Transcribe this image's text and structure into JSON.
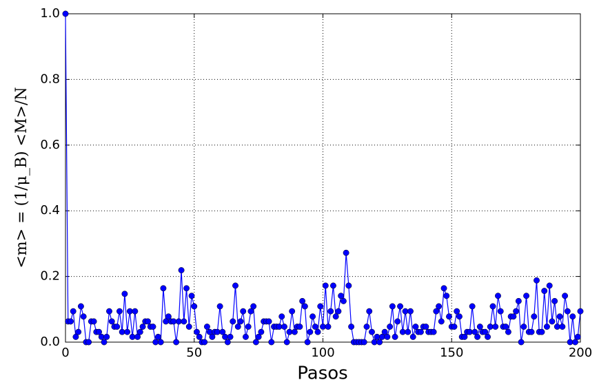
{
  "chart_data": {
    "type": "line",
    "x_label": "Pasos",
    "y_label": "<m> = (1/μ_B) <M>/N",
    "x": [
      0,
      1,
      2,
      3,
      4,
      5,
      6,
      7,
      8,
      9,
      10,
      11,
      12,
      13,
      14,
      15,
      16,
      17,
      18,
      19,
      20,
      21,
      22,
      23,
      24,
      25,
      26,
      27,
      28,
      29,
      30,
      31,
      32,
      33,
      34,
      35,
      36,
      37,
      38,
      39,
      40,
      41,
      42,
      43,
      44,
      45,
      46,
      47,
      48,
      49,
      50,
      51,
      52,
      53,
      54,
      55,
      56,
      57,
      58,
      59,
      60,
      61,
      62,
      63,
      64,
      65,
      66,
      67,
      68,
      69,
      70,
      71,
      72,
      73,
      74,
      75,
      76,
      77,
      78,
      79,
      80,
      81,
      82,
      83,
      84,
      85,
      86,
      87,
      88,
      89,
      90,
      91,
      92,
      93,
      94,
      95,
      96,
      97,
      98,
      99,
      100,
      101,
      102,
      103,
      104,
      105,
      106,
      107,
      108,
      109,
      110,
      111,
      112,
      113,
      114,
      115,
      116,
      117,
      118,
      119,
      120,
      121,
      122,
      123,
      124,
      125,
      126,
      127,
      128,
      129,
      130,
      131,
      132,
      133,
      134,
      135,
      136,
      137,
      138,
      139,
      140,
      141,
      142,
      143,
      144,
      145,
      146,
      147,
      148,
      149,
      150,
      151,
      152,
      153,
      154,
      155,
      156,
      157,
      158,
      159,
      160,
      161,
      162,
      163,
      164,
      165,
      166,
      167,
      168,
      169,
      170,
      171,
      172,
      173,
      174,
      175,
      176,
      177,
      178,
      179,
      180,
      181,
      182,
      183,
      184,
      185,
      186,
      187,
      188,
      189,
      190,
      191,
      192,
      193,
      194,
      195,
      196,
      197,
      198,
      199,
      200
    ],
    "series": [
      {
        "name": "m",
        "color": "#0000ff",
        "values": [
          1.0,
          0.063,
          0.063,
          0.094,
          0.016,
          0.031,
          0.109,
          0.078,
          0.0,
          0.0,
          0.063,
          0.063,
          0.031,
          0.031,
          0.016,
          0.0,
          0.016,
          0.094,
          0.063,
          0.047,
          0.047,
          0.094,
          0.031,
          0.147,
          0.031,
          0.094,
          0.016,
          0.094,
          0.016,
          0.031,
          0.047,
          0.063,
          0.063,
          0.047,
          0.047,
          0.0,
          0.016,
          0.0,
          0.164,
          0.063,
          0.078,
          0.063,
          0.063,
          0.0,
          0.063,
          0.219,
          0.063,
          0.164,
          0.047,
          0.141,
          0.109,
          0.031,
          0.016,
          0.0,
          0.0,
          0.047,
          0.031,
          0.016,
          0.031,
          0.031,
          0.109,
          0.031,
          0.016,
          0.0,
          0.016,
          0.063,
          0.172,
          0.047,
          0.063,
          0.094,
          0.016,
          0.047,
          0.094,
          0.109,
          0.0,
          0.016,
          0.031,
          0.063,
          0.063,
          0.063,
          0.0,
          0.047,
          0.047,
          0.047,
          0.078,
          0.047,
          0.0,
          0.031,
          0.094,
          0.031,
          0.047,
          0.047,
          0.125,
          0.109,
          0.0,
          0.031,
          0.078,
          0.047,
          0.031,
          0.109,
          0.047,
          0.172,
          0.047,
          0.094,
          0.172,
          0.078,
          0.094,
          0.141,
          0.125,
          0.272,
          0.172,
          0.047,
          0.0,
          0.0,
          0.0,
          0.0,
          0.0,
          0.047,
          0.094,
          0.031,
          0.0,
          0.016,
          0.0,
          0.016,
          0.031,
          0.016,
          0.047,
          0.109,
          0.016,
          0.063,
          0.109,
          0.031,
          0.094,
          0.031,
          0.094,
          0.016,
          0.047,
          0.031,
          0.031,
          0.047,
          0.047,
          0.031,
          0.031,
          0.031,
          0.094,
          0.109,
          0.063,
          0.164,
          0.141,
          0.078,
          0.047,
          0.047,
          0.094,
          0.078,
          0.016,
          0.016,
          0.031,
          0.031,
          0.109,
          0.031,
          0.016,
          0.047,
          0.031,
          0.031,
          0.016,
          0.047,
          0.109,
          0.047,
          0.141,
          0.094,
          0.047,
          0.047,
          0.031,
          0.078,
          0.078,
          0.094,
          0.125,
          0.0,
          0.047,
          0.141,
          0.031,
          0.031,
          0.078,
          0.188,
          0.031,
          0.031,
          0.156,
          0.047,
          0.172,
          0.063,
          0.125,
          0.047,
          0.078,
          0.047,
          0.141,
          0.094,
          0.0,
          0.078,
          0.0,
          0.016,
          0.094
        ]
      }
    ],
    "xlim": [
      0,
      200
    ],
    "xticks": [
      0,
      50,
      100,
      150,
      200
    ],
    "ylim": [
      0,
      1
    ],
    "yticks": [
      {
        "value": 0,
        "label": "0.0"
      },
      {
        "value": 0.2,
        "label": "0.2"
      },
      {
        "value": 0.4,
        "label": "0.4"
      },
      {
        "value": 0.6,
        "label": "0.6"
      },
      {
        "value": 0.8,
        "label": "0.8"
      },
      {
        "value": 1,
        "label": "1.0"
      }
    ],
    "grid": true
  }
}
